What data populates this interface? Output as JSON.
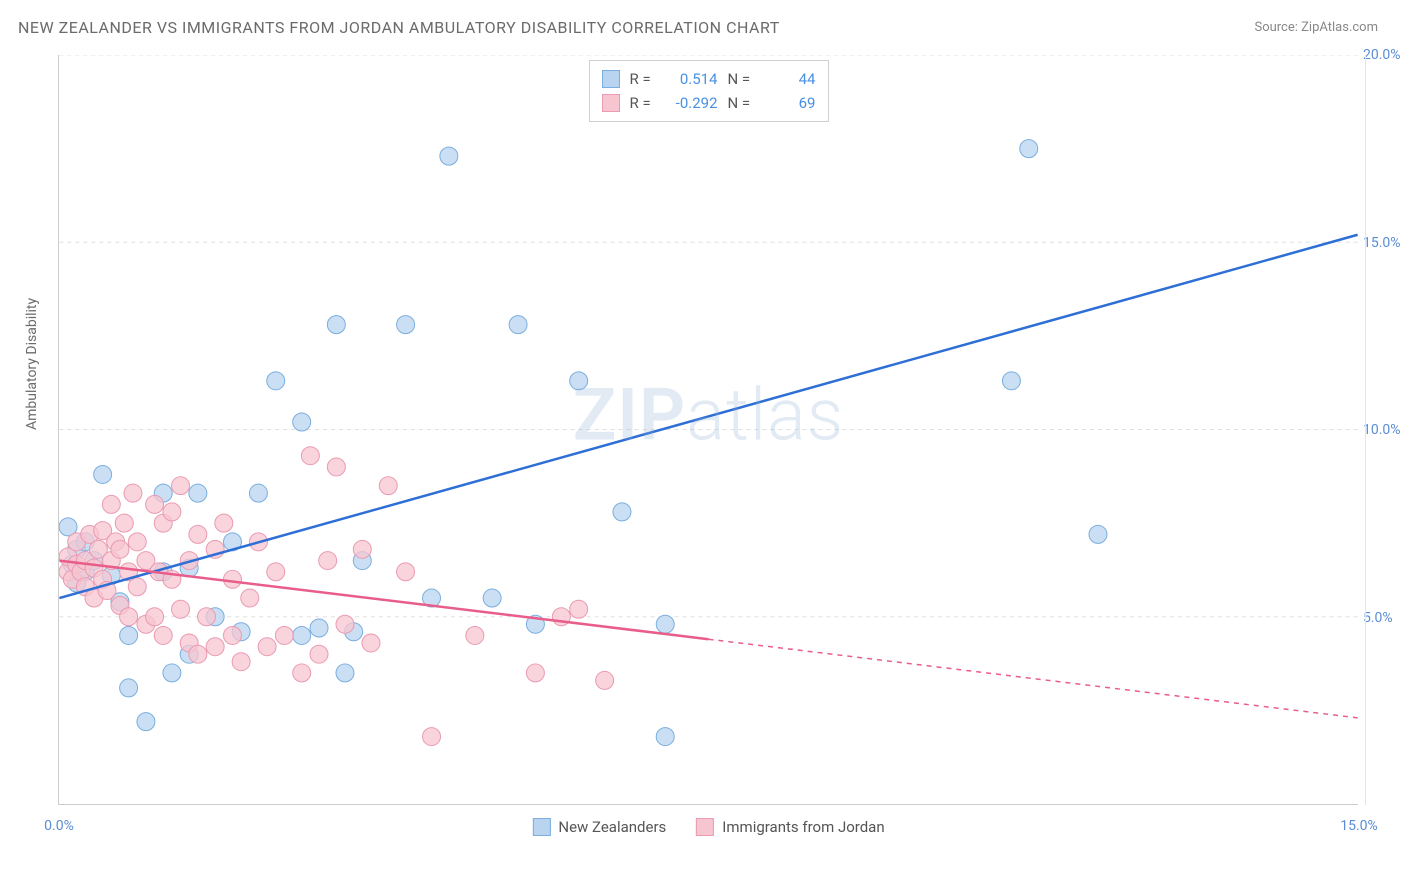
{
  "header": {
    "title": "NEW ZEALANDER VS IMMIGRANTS FROM JORDAN AMBULATORY DISABILITY CORRELATION CHART",
    "source": "Source: ZipAtlas.com"
  },
  "watermark": {
    "prefix": "ZIP",
    "suffix": "atlas"
  },
  "ylabel": "Ambulatory Disability",
  "chart": {
    "type": "scatter-with-regression",
    "xlim": [
      0,
      15
    ],
    "ylim": [
      0,
      20
    ],
    "yticks": [
      5,
      10,
      15,
      20
    ],
    "ytick_labels": [
      "5.0%",
      "10.0%",
      "15.0%",
      "20.0%"
    ],
    "xticks": [
      0,
      15
    ],
    "xtick_labels": [
      "0.0%",
      "15.0%"
    ],
    "background_color": "#ffffff",
    "grid_color": "#e0e0e0",
    "series": [
      {
        "name": "New Zealanders",
        "marker_fill": "#b8d4f0",
        "marker_stroke": "#7aaede",
        "line_color": "#2e6fd6",
        "r": 0.514,
        "n": 44,
        "reg_start": [
          0,
          5.5
        ],
        "reg_end": [
          15,
          15.2
        ],
        "reg_solid_until": 15,
        "points": [
          [
            0.1,
            7.4
          ],
          [
            0.15,
            6.4
          ],
          [
            0.2,
            6.8
          ],
          [
            0.2,
            5.9
          ],
          [
            0.3,
            6.2
          ],
          [
            0.3,
            7.0
          ],
          [
            0.4,
            6.5
          ],
          [
            0.5,
            8.8
          ],
          [
            0.6,
            6.1
          ],
          [
            0.7,
            5.4
          ],
          [
            0.8,
            4.5
          ],
          [
            0.8,
            3.1
          ],
          [
            1.0,
            2.2
          ],
          [
            1.2,
            6.2
          ],
          [
            1.2,
            8.3
          ],
          [
            1.3,
            3.5
          ],
          [
            1.5,
            4.0
          ],
          [
            1.5,
            6.3
          ],
          [
            1.6,
            8.3
          ],
          [
            1.8,
            5.0
          ],
          [
            2.0,
            7.0
          ],
          [
            2.1,
            4.6
          ],
          [
            2.3,
            8.3
          ],
          [
            2.5,
            11.3
          ],
          [
            2.8,
            10.2
          ],
          [
            2.8,
            4.5
          ],
          [
            3.0,
            4.7
          ],
          [
            3.2,
            12.8
          ],
          [
            3.3,
            3.5
          ],
          [
            3.4,
            4.6
          ],
          [
            3.5,
            6.5
          ],
          [
            4.0,
            12.8
          ],
          [
            4.3,
            5.5
          ],
          [
            4.5,
            17.3
          ],
          [
            5.0,
            5.5
          ],
          [
            5.3,
            12.8
          ],
          [
            5.5,
            4.8
          ],
          [
            6.0,
            11.3
          ],
          [
            6.5,
            7.8
          ],
          [
            7.0,
            1.8
          ],
          [
            7.0,
            4.8
          ],
          [
            11.0,
            11.3
          ],
          [
            11.2,
            17.5
          ],
          [
            12.0,
            7.2
          ]
        ]
      },
      {
        "name": "Immigrants from Jordan",
        "marker_fill": "#f7c5d0",
        "marker_stroke": "#ea9ab2",
        "line_color": "#e85d8a",
        "r": -0.292,
        "n": 69,
        "reg_start": [
          0,
          6.5
        ],
        "reg_end": [
          15,
          2.3
        ],
        "reg_solid_until": 7.5,
        "points": [
          [
            0.1,
            6.2
          ],
          [
            0.1,
            6.6
          ],
          [
            0.15,
            6.0
          ],
          [
            0.2,
            6.4
          ],
          [
            0.2,
            7.0
          ],
          [
            0.25,
            6.2
          ],
          [
            0.3,
            5.8
          ],
          [
            0.3,
            6.5
          ],
          [
            0.35,
            7.2
          ],
          [
            0.4,
            5.5
          ],
          [
            0.4,
            6.3
          ],
          [
            0.45,
            6.8
          ],
          [
            0.5,
            6.0
          ],
          [
            0.5,
            7.3
          ],
          [
            0.55,
            5.7
          ],
          [
            0.6,
            6.5
          ],
          [
            0.6,
            8.0
          ],
          [
            0.65,
            7.0
          ],
          [
            0.7,
            5.3
          ],
          [
            0.7,
            6.8
          ],
          [
            0.75,
            7.5
          ],
          [
            0.8,
            5.0
          ],
          [
            0.8,
            6.2
          ],
          [
            0.85,
            8.3
          ],
          [
            0.9,
            5.8
          ],
          [
            0.9,
            7.0
          ],
          [
            1.0,
            4.8
          ],
          [
            1.0,
            6.5
          ],
          [
            1.1,
            8.0
          ],
          [
            1.1,
            5.0
          ],
          [
            1.15,
            6.2
          ],
          [
            1.2,
            7.5
          ],
          [
            1.2,
            4.5
          ],
          [
            1.3,
            6.0
          ],
          [
            1.3,
            7.8
          ],
          [
            1.4,
            5.2
          ],
          [
            1.4,
            8.5
          ],
          [
            1.5,
            4.3
          ],
          [
            1.5,
            6.5
          ],
          [
            1.6,
            4.0
          ],
          [
            1.6,
            7.2
          ],
          [
            1.7,
            5.0
          ],
          [
            1.8,
            4.2
          ],
          [
            1.8,
            6.8
          ],
          [
            1.9,
            7.5
          ],
          [
            2.0,
            4.5
          ],
          [
            2.0,
            6.0
          ],
          [
            2.1,
            3.8
          ],
          [
            2.2,
            5.5
          ],
          [
            2.3,
            7.0
          ],
          [
            2.4,
            4.2
          ],
          [
            2.5,
            6.2
          ],
          [
            2.6,
            4.5
          ],
          [
            2.8,
            3.5
          ],
          [
            2.9,
            9.3
          ],
          [
            3.0,
            4.0
          ],
          [
            3.1,
            6.5
          ],
          [
            3.2,
            9.0
          ],
          [
            3.3,
            4.8
          ],
          [
            3.5,
            6.8
          ],
          [
            3.6,
            4.3
          ],
          [
            3.8,
            8.5
          ],
          [
            4.0,
            6.2
          ],
          [
            4.3,
            1.8
          ],
          [
            4.8,
            4.5
          ],
          [
            5.5,
            3.5
          ],
          [
            5.8,
            5.0
          ],
          [
            6.0,
            5.2
          ],
          [
            6.3,
            3.3
          ]
        ]
      }
    ]
  },
  "legend_top": [
    {
      "swatch_fill": "#b8d4f0",
      "swatch_stroke": "#7aaede",
      "r_label": "R =",
      "r_val": "0.514",
      "n_label": "N =",
      "n_val": "44"
    },
    {
      "swatch_fill": "#f7c5d0",
      "swatch_stroke": "#ea9ab2",
      "r_label": "R =",
      "r_val": "-0.292",
      "n_label": "N =",
      "n_val": "69"
    }
  ],
  "legend_bottom": [
    {
      "swatch_fill": "#b8d4f0",
      "swatch_stroke": "#7aaede",
      "label": "New Zealanders"
    },
    {
      "swatch_fill": "#f7c5d0",
      "swatch_stroke": "#ea9ab2",
      "label": "Immigrants from Jordan"
    }
  ]
}
